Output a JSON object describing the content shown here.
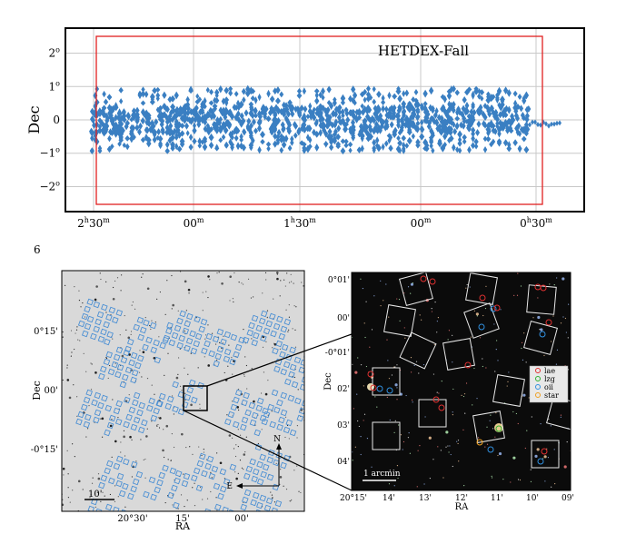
{
  "figure_number": "6",
  "chart_data": [
    {
      "type": "scatter",
      "panel": "top",
      "title": "HETDEX-Fall",
      "ylabel": "Dec",
      "xlabel": "",
      "x_ticklabels": [
        {
          "base": "2",
          "sup": "h",
          "rest": "30",
          "sup2": "m"
        },
        {
          "base": "00",
          "sup": "m",
          "rest": "",
          "sup2": ""
        },
        {
          "base": "1",
          "sup": "h",
          "rest": "30",
          "sup2": "m"
        },
        {
          "base": "00",
          "sup": "m",
          "rest": "",
          "sup2": ""
        },
        {
          "base": "0",
          "sup": "h",
          "rest": "30",
          "sup2": "m"
        }
      ],
      "y_ticklabels": [
        {
          "base": "2",
          "sup": "o",
          "value": 2
        },
        {
          "base": "1",
          "sup": "o",
          "value": 1
        },
        {
          "base": "0",
          "sup": "",
          "value": 0
        },
        {
          "base": "−1",
          "sup": "o",
          "value": -1
        },
        {
          "base": "−2",
          "sup": "o",
          "value": -2
        }
      ],
      "ylim": [
        -2.75,
        2.75
      ],
      "grid": true,
      "footprint_color": "#3a7fc2",
      "box_color": "#e02020",
      "footprint_dec_band": [
        -1.1,
        1.1
      ]
    },
    {
      "type": "image",
      "panel": "bottom-left",
      "ylabel": "Dec",
      "xlabel": "RA",
      "x_ticklabels": [
        "20°30'",
        "15'",
        "00'"
      ],
      "y_ticklabels": [
        "0°15'",
        "00'",
        "-0°15'"
      ],
      "scale_label": "10'",
      "compass": {
        "north": "N",
        "east": "E"
      },
      "ifu_color": "#4a8fd4"
    },
    {
      "type": "image",
      "panel": "bottom-right",
      "ylabel": "Dec",
      "xlabel": "RA",
      "x_ticklabels": [
        "20°15'",
        "14'",
        "13'",
        "12'",
        "11'",
        "10'",
        "09'"
      ],
      "y_ticklabels": [
        "0°01'",
        "00'",
        "-0°01'",
        "02'",
        "03'",
        "04'"
      ],
      "scale_label": "1 arcmin",
      "legend": [
        {
          "name": "lae",
          "color": "#e03030"
        },
        {
          "name": "lzg",
          "color": "#30b030"
        },
        {
          "name": "oii",
          "color": "#3090e0"
        },
        {
          "name": "star",
          "color": "#f0a020"
        }
      ]
    }
  ]
}
